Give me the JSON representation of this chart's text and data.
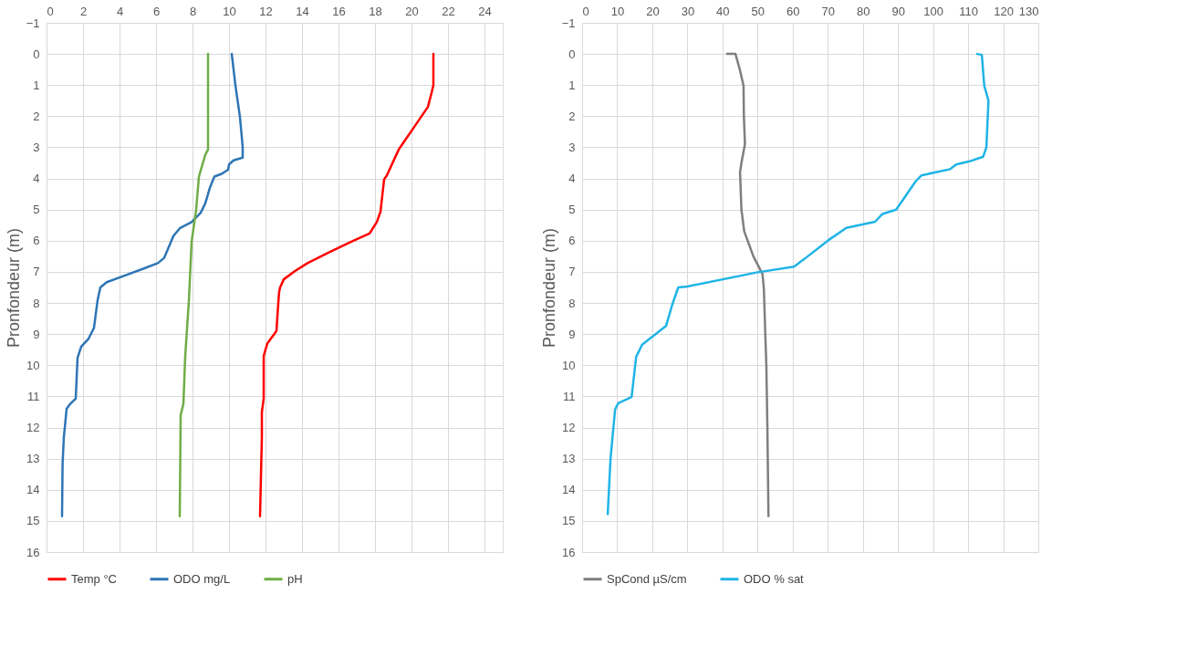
{
  "chart_data": [
    {
      "type": "line",
      "ylabel": "Pronfondeur (m)",
      "xlim": [
        0,
        25
      ],
      "xticks": [
        0,
        2,
        4,
        6,
        8,
        10,
        12,
        14,
        16,
        18,
        20,
        22,
        24
      ],
      "ylim": [
        16,
        -1
      ],
      "yticks": [
        -1,
        0,
        1,
        2,
        3,
        4,
        5,
        6,
        7,
        8,
        9,
        10,
        11,
        12,
        13,
        14,
        15,
        16
      ],
      "grid": true,
      "legend": "bottom",
      "marker": "none",
      "line_style": "solid",
      "series": [
        {
          "name": "Temp °C",
          "color": "#ff0000",
          "x": [
            21.2,
            21.2,
            21.1,
            20.9,
            20.2,
            19.5,
            19.3,
            18.65,
            18.5,
            18.3,
            18.1,
            17.7,
            16.7,
            15.5,
            14.3,
            13.6,
            13.0,
            12.8,
            12.75,
            12.7,
            12.6,
            12.1,
            11.9,
            11.9,
            11.9,
            11.8,
            11.8,
            11.7
          ],
          "values": [
            0,
            1,
            1.25,
            1.7,
            2.3,
            2.9,
            3.07,
            3.9,
            4.03,
            5.07,
            5.4,
            5.77,
            6.03,
            6.37,
            6.72,
            6.98,
            7.24,
            7.5,
            7.63,
            8.0,
            8.9,
            9.3,
            9.7,
            10.0,
            11.07,
            11.5,
            12.3,
            14.85
          ]
        },
        {
          "name": "ODO mg/L",
          "color": "#2e75b6",
          "x": [
            10.15,
            10.35,
            10.6,
            10.75,
            10.75,
            10.25,
            10.0,
            9.95,
            9.6,
            9.2,
            8.95,
            8.7,
            8.45,
            7.95,
            7.3,
            6.95,
            6.45,
            6.1,
            5.3,
            4.1,
            3.3,
            2.95,
            2.8,
            2.6,
            2.3,
            1.9,
            1.7,
            1.6,
            1.3,
            1.1,
            0.95,
            0.88,
            0.85
          ],
          "values": [
            0,
            1,
            2.03,
            3.0,
            3.33,
            3.42,
            3.55,
            3.72,
            3.85,
            3.94,
            4.3,
            4.8,
            5.1,
            5.4,
            5.6,
            5.85,
            6.55,
            6.72,
            6.9,
            7.16,
            7.33,
            7.5,
            7.9,
            8.8,
            9.15,
            9.4,
            9.76,
            11.07,
            11.24,
            11.4,
            12.3,
            13.15,
            14.85
          ]
        },
        {
          "name": "pH",
          "color": "#70ad47",
          "x": [
            8.85,
            8.85,
            8.7,
            8.35,
            8.2,
            7.95,
            7.8,
            7.6,
            7.5,
            7.35,
            7.3
          ],
          "values": [
            0,
            3.07,
            3.24,
            3.94,
            5.0,
            6.03,
            7.93,
            9.7,
            11.24,
            11.6,
            14.85
          ]
        }
      ]
    },
    {
      "type": "line",
      "ylabel": "Pronfondeur (m)",
      "xlim": [
        0,
        130
      ],
      "xticks": [
        0,
        10,
        20,
        30,
        40,
        50,
        60,
        70,
        80,
        90,
        100,
        110,
        120,
        130
      ],
      "ylim": [
        16,
        -1
      ],
      "yticks": [
        -1,
        0,
        1,
        2,
        3,
        4,
        5,
        6,
        7,
        8,
        9,
        10,
        11,
        12,
        13,
        14,
        15,
        16
      ],
      "grid": true,
      "legend": "bottom",
      "marker": "none",
      "line_style": "solid",
      "series": [
        {
          "name": "SpCond µS/cm",
          "color": "#7f7f7f",
          "x": [
            41.3,
            43.7,
            45,
            46,
            46.1,
            46.4,
            45.4,
            45,
            45.4,
            46.2,
            48.8,
            51.4,
            51.8,
            52.2,
            52.5,
            52.8,
            53.1
          ],
          "values": [
            0,
            0,
            0.53,
            1.02,
            2.0,
            2.9,
            3.5,
            3.8,
            5.0,
            5.7,
            6.5,
            7.07,
            7.55,
            9.0,
            10.0,
            12.0,
            14.85
          ]
        },
        {
          "name": "ODO % sat",
          "color": "#1fb4e6",
          "x": [
            112.6,
            113.9,
            114.6,
            115.8,
            115.6,
            115.2,
            114.3,
            110.4,
            106.6,
            104.9,
            96.7,
            95,
            89.5,
            85.6,
            83.5,
            75.3,
            70.2,
            63.4,
            60.4,
            49.7,
            30,
            27.4,
            25.7,
            23.9,
            20.5,
            17.1,
            15.4,
            14.1,
            10.3,
            9.4,
            8.1,
            7.3
          ],
          "values": [
            0,
            0.03,
            1.02,
            1.5,
            2.0,
            3.0,
            3.3,
            3.45,
            3.55,
            3.7,
            3.9,
            4.1,
            5.0,
            5.14,
            5.39,
            5.59,
            5.98,
            6.58,
            6.83,
            7.02,
            7.47,
            7.5,
            8.05,
            8.74,
            9.04,
            9.34,
            9.73,
            11.02,
            11.22,
            11.42,
            13.0,
            14.78
          ]
        }
      ]
    }
  ]
}
